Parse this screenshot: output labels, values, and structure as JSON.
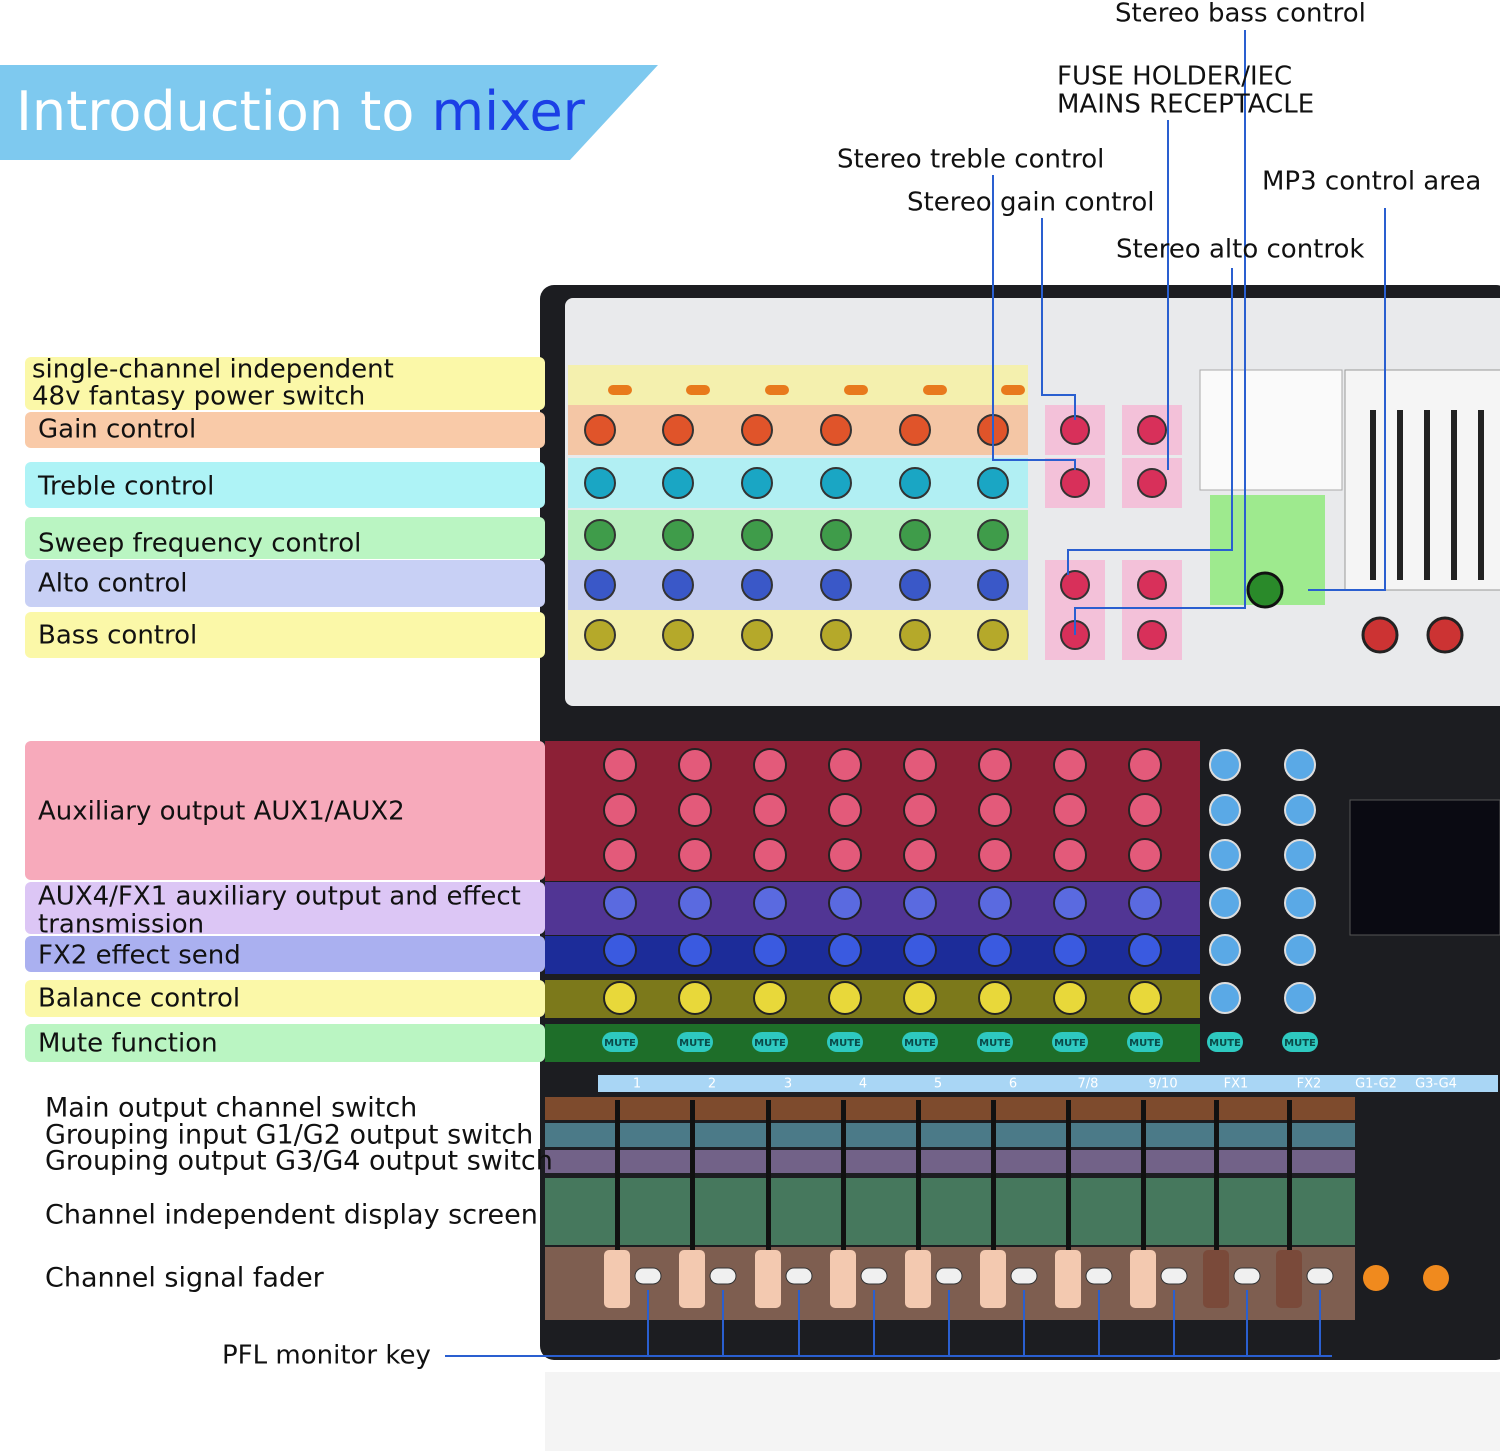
{
  "header": {
    "title": "Introduction to ",
    "title_highlight": "mixer"
  },
  "left_labels": [
    {
      "lines": [
        "single-channel independent",
        "48v fantasy power switch"
      ]
    },
    {
      "lines": [
        "Gain control"
      ]
    },
    {
      "lines": [
        "Treble control"
      ]
    },
    {
      "lines": [
        "Sweep frequency control"
      ]
    },
    {
      "lines": [
        "Alto control"
      ]
    },
    {
      "lines": [
        "Bass control"
      ]
    },
    {
      "lines": [
        "Auxiliary output AUX1/AUX2"
      ]
    },
    {
      "lines": [
        "AUX4/FX1 auxiliary output and effect",
        "transmission"
      ]
    },
    {
      "lines": [
        "FX2 effect send"
      ]
    },
    {
      "lines": [
        "Balance control"
      ]
    },
    {
      "lines": [
        "Mute function"
      ]
    },
    {
      "lines": [
        "Main output channel switch"
      ]
    },
    {
      "lines": [
        "Grouping input G1/G2 output switch"
      ]
    },
    {
      "lines": [
        "Grouping output G3/G4 output switch"
      ]
    },
    {
      "lines": [
        "Channel independent display screen"
      ]
    },
    {
      "lines": [
        "Channel signal fader"
      ]
    }
  ],
  "top_labels": [
    {
      "lines": [
        "Stereo bass control"
      ]
    },
    {
      "lines": [
        "FUSE HOLDER/IEC",
        "MAINS RECEPTACLE"
      ]
    },
    {
      "lines": [
        "Stereo treble control"
      ]
    },
    {
      "lines": [
        "Stereo gain control"
      ]
    },
    {
      "lines": [
        "MP3 control area"
      ]
    },
    {
      "lines": [
        "Stereo alto controk"
      ]
    }
  ],
  "bottom_label": "PFL monitor key",
  "mute_label": "MUTE",
  "strip_labels": [
    "1",
    "2",
    "3",
    "4",
    "5",
    "6",
    "7/8",
    "9/10",
    "FX1",
    "FX2",
    "G1-G2",
    "G3-G4"
  ]
}
